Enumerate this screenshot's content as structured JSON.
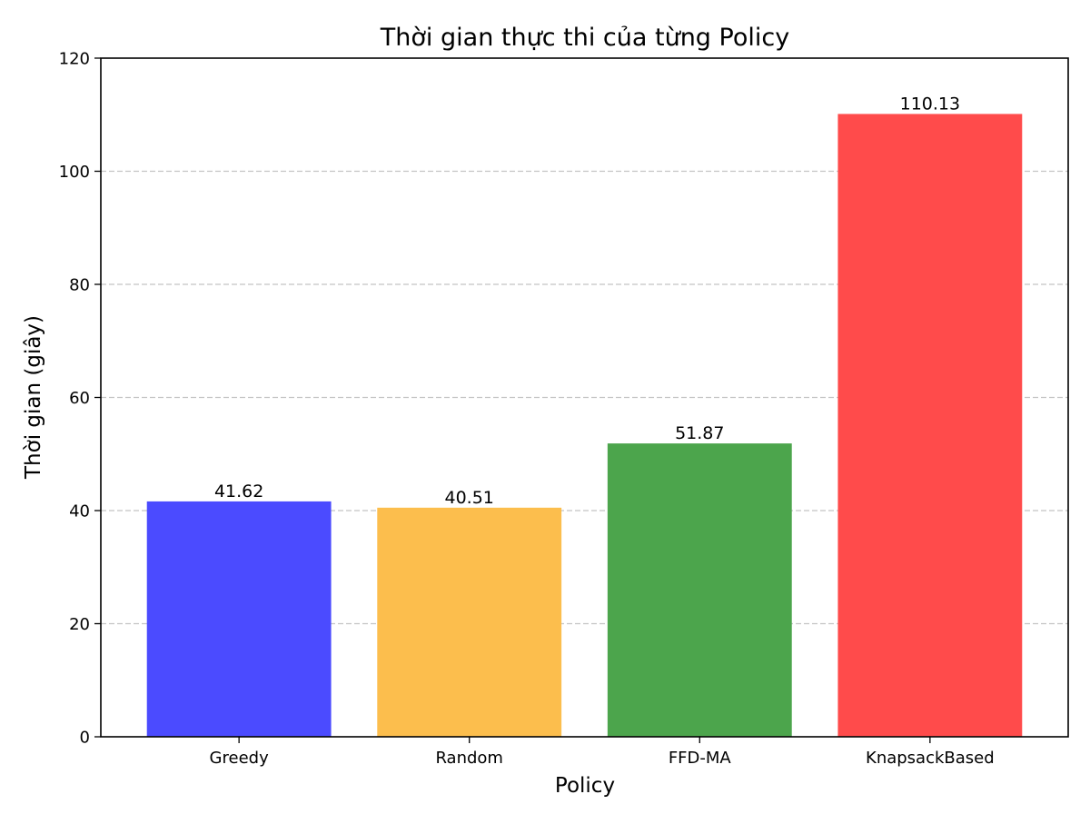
{
  "chart_data": {
    "type": "bar",
    "title": "Thời gian thực thi của từng Policy",
    "xlabel": "Policy",
    "ylabel": "Thời gian (giây)",
    "categories": [
      "Greedy",
      "Random",
      "FFD-MA",
      "KnapsackBased"
    ],
    "values": [
      41.62,
      40.51,
      51.87,
      110.13
    ],
    "value_labels": [
      "41.62",
      "40.51",
      "51.87",
      "110.13"
    ],
    "colors": [
      "#4b4bff",
      "#fcbe4d",
      "#4ca54c",
      "#ff4b4b"
    ],
    "ylim": [
      0,
      120
    ],
    "yticks": [
      0,
      20,
      40,
      60,
      80,
      100,
      120
    ],
    "grid": "y-dashed",
    "legend": "none"
  }
}
